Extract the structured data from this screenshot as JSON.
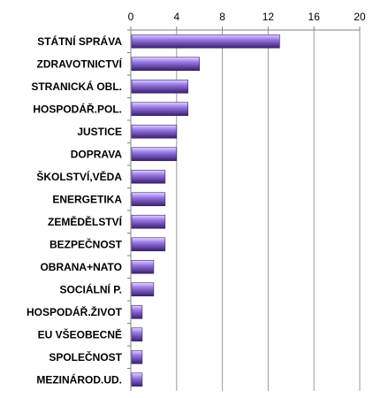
{
  "chart_data": {
    "type": "bar",
    "orientation": "horizontal",
    "x_axis_position": "top",
    "categories": [
      "STÁTNÍ SPRÁVA",
      "ZDRAVOTNICTVÍ",
      "STRANICKÁ OBL.",
      "HOSPODÁŘ.POL.",
      "JUSTICE",
      "DOPRAVA",
      "ŠKOLSTVÍ,VĚDA",
      "ENERGETIKA",
      "ZEMĚDĚLSTVÍ",
      "BEZPEČNOST",
      "OBRANA+NATO",
      "SOCIÁLNÍ P.",
      "HOSPODÁŘ.ŽIVOT",
      "EU VŠEOBECNĚ",
      "SPOLEČNOST",
      "MEZINÁROD.UD."
    ],
    "values": [
      13,
      6,
      5,
      5,
      4,
      4,
      3,
      3,
      3,
      3,
      2,
      2,
      1,
      1,
      1,
      1
    ],
    "xlim": [
      0,
      20
    ],
    "xticks": [
      0,
      4,
      8,
      12,
      16,
      20
    ],
    "grid": true,
    "bar_color": "#9b7be8",
    "bar_highlight_color": "#e2d6ff",
    "bar_shadow_color": "#3a1f6e",
    "title": "",
    "xlabel": "",
    "ylabel": ""
  }
}
